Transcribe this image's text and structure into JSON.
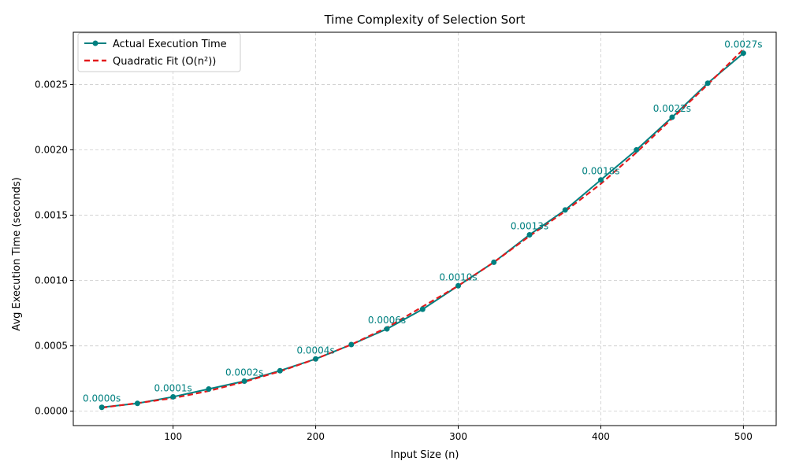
{
  "chart_data": {
    "type": "line",
    "title": "Time Complexity of Selection Sort",
    "xlabel": "Input Size (n)",
    "ylabel": "Avg Execution Time (seconds)",
    "xlim": [
      30,
      523
    ],
    "ylim": [
      -0.00011,
      0.0029
    ],
    "xticks": [
      100,
      200,
      300,
      400,
      500
    ],
    "xtick_labels": [
      "100",
      "200",
      "300",
      "400",
      "500"
    ],
    "yticks": [
      0,
      0.0005,
      0.001,
      0.0015,
      0.002,
      0.0025
    ],
    "ytick_labels": [
      "0.0000",
      "0.0005",
      "0.0010",
      "0.0015",
      "0.0020",
      "0.0025"
    ],
    "grid": true,
    "legend_position": "top-left",
    "x": [
      50,
      75,
      100,
      125,
      150,
      175,
      200,
      225,
      250,
      275,
      300,
      325,
      350,
      375,
      400,
      425,
      450,
      475,
      500
    ],
    "series": [
      {
        "name": "Actual Execution Time",
        "color": "#008080",
        "style": "solid-with-markers",
        "values": [
          3e-05,
          6e-05,
          0.00011,
          0.00017,
          0.00023,
          0.00031,
          0.0004,
          0.00051,
          0.00063,
          0.00078,
          0.00096,
          0.00114,
          0.00135,
          0.00154,
          0.00177,
          0.002,
          0.00225,
          0.00251,
          0.00274
        ]
      },
      {
        "name": "Quadratic Fit (O(n²))",
        "color": "#e31a1c",
        "style": "dashed",
        "values": [
          2.7e-05,
          6.2e-05,
          0.0001,
          0.000155,
          0.000225,
          0.000305,
          0.0004,
          0.00051,
          0.00064,
          0.0008,
          0.00096,
          0.00114,
          0.00134,
          0.00153,
          0.00174,
          0.00198,
          0.00224,
          0.0025,
          0.00277
        ]
      }
    ],
    "annotations": [
      {
        "x": 50,
        "y": 3e-05,
        "text": "0.0000s"
      },
      {
        "x": 100,
        "y": 0.00011,
        "text": "0.0001s"
      },
      {
        "x": 150,
        "y": 0.00023,
        "text": "0.0002s"
      },
      {
        "x": 200,
        "y": 0.0004,
        "text": "0.0004s"
      },
      {
        "x": 250,
        "y": 0.00063,
        "text": "0.0006s"
      },
      {
        "x": 300,
        "y": 0.00096,
        "text": "0.0010s"
      },
      {
        "x": 350,
        "y": 0.00135,
        "text": "0.0013s"
      },
      {
        "x": 400,
        "y": 0.00177,
        "text": "0.0018s"
      },
      {
        "x": 450,
        "y": 0.00225,
        "text": "0.0022s"
      },
      {
        "x": 500,
        "y": 0.00274,
        "text": "0.0027s"
      }
    ]
  }
}
